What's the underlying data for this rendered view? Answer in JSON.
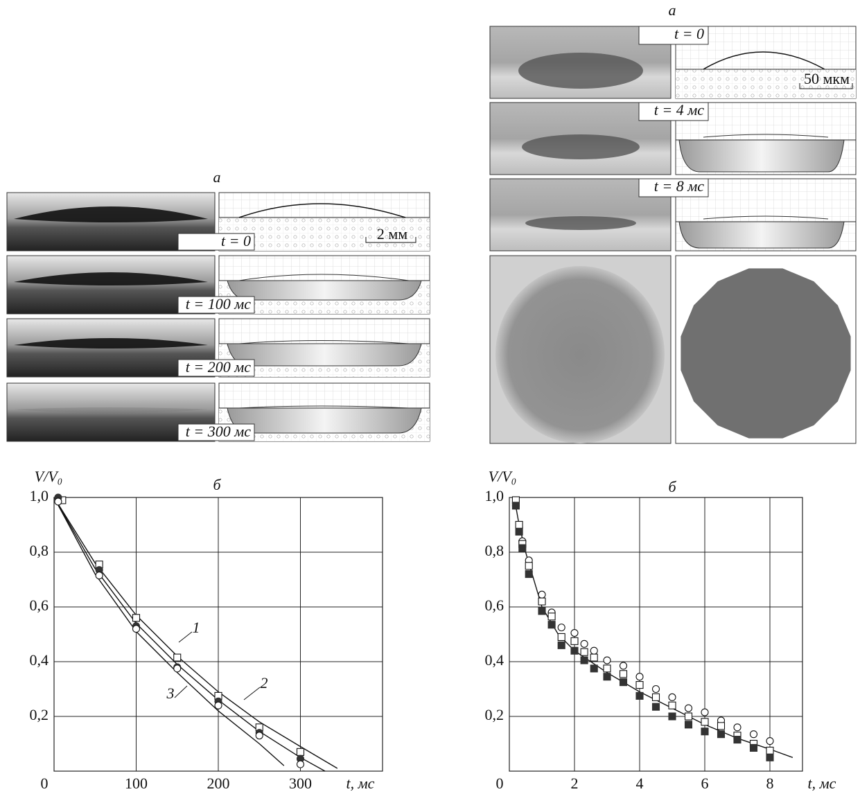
{
  "left_figure": {
    "label": "а",
    "frames": [
      "t = 0",
      "t = 100 мс",
      "t = 200 мс",
      "t = 300 мс"
    ],
    "scale": "2 мм"
  },
  "right_figure": {
    "label": "а",
    "frames": [
      "t = 0",
      "t = 4 мс",
      "t = 8 мс"
    ],
    "scale": "50 мкм"
  },
  "chart_data": [
    {
      "type": "scatter",
      "title": "б",
      "y_label": "V/V₀",
      "x_label": "t, мс",
      "xlim": [
        0,
        400
      ],
      "ylim": [
        0,
        1.0
      ],
      "xticks": [
        0,
        100,
        200,
        300
      ],
      "yticks": [
        {
          "value": 0.2,
          "label": "0,2"
        },
        {
          "value": 0.4,
          "label": "0,4"
        },
        {
          "value": 0.6,
          "label": "0,6"
        },
        {
          "value": 0.8,
          "label": "0,8"
        },
        {
          "value": 1.0,
          "label": "1,0"
        }
      ],
      "grid": true,
      "series": [
        {
          "name": "1",
          "style": "line",
          "color": "#111111",
          "x": [
            0,
            50,
            100,
            150,
            200,
            250,
            300,
            345
          ],
          "values": [
            1.0,
            0.76,
            0.57,
            0.42,
            0.29,
            0.18,
            0.09,
            0.01
          ]
        },
        {
          "name": "2",
          "style": "line",
          "color": "#111111",
          "x": [
            0,
            50,
            100,
            150,
            200,
            250,
            300,
            330
          ],
          "values": [
            1.0,
            0.74,
            0.54,
            0.39,
            0.26,
            0.145,
            0.05,
            0.0
          ]
        },
        {
          "name": "3",
          "style": "line",
          "color": "#111111",
          "x": [
            0,
            50,
            100,
            150,
            200,
            250,
            280
          ],
          "values": [
            1.0,
            0.72,
            0.51,
            0.36,
            0.22,
            0.1,
            0.02
          ]
        },
        {
          "marker": "square",
          "filled": false,
          "color": "#111111",
          "x": [
            10,
            55,
            100,
            150,
            200,
            250,
            300
          ],
          "values": [
            0.99,
            0.755,
            0.56,
            0.415,
            0.275,
            0.16,
            0.07
          ]
        },
        {
          "marker": "circle",
          "filled": true,
          "color": "#333333",
          "x": [
            5,
            55,
            100,
            150,
            200,
            250,
            300
          ],
          "values": [
            1.0,
            0.735,
            0.53,
            0.38,
            0.255,
            0.14,
            0.045
          ]
        },
        {
          "marker": "circle",
          "filled": false,
          "color": "#111111",
          "x": [
            5,
            55,
            100,
            150,
            200,
            250,
            300
          ],
          "values": [
            0.985,
            0.715,
            0.52,
            0.375,
            0.24,
            0.13,
            0.025
          ]
        }
      ]
    },
    {
      "type": "scatter",
      "title": "б",
      "y_label": "V/V₀",
      "x_label": "t, мс",
      "xlim": [
        0,
        9
      ],
      "ylim": [
        0,
        1.0
      ],
      "xticks": [
        0,
        2,
        4,
        6,
        8
      ],
      "yticks": [
        {
          "value": 0.2,
          "label": "0,2"
        },
        {
          "value": 0.4,
          "label": "0,4"
        },
        {
          "value": 0.6,
          "label": "0,6"
        },
        {
          "value": 0.8,
          "label": "0,8"
        },
        {
          "value": 1.0,
          "label": "1,0"
        }
      ],
      "grid": true,
      "series": [
        {
          "style": "line",
          "color": "#111111",
          "x": [
            0.15,
            0.3,
            0.5,
            0.8,
            1,
            1.5,
            2,
            3,
            4,
            5,
            6,
            7,
            8,
            8.7
          ],
          "values": [
            1.0,
            0.9,
            0.8,
            0.68,
            0.6,
            0.5,
            0.44,
            0.36,
            0.29,
            0.23,
            0.17,
            0.12,
            0.08,
            0.05
          ]
        },
        {
          "marker": "circle",
          "filled": false,
          "color": "#111111",
          "x": [
            0.2,
            0.3,
            0.4,
            0.6,
            1,
            1.3,
            1.6,
            2,
            2.3,
            2.6,
            3,
            3.5,
            4,
            4.5,
            5,
            5.5,
            6,
            6.5,
            7,
            7.5,
            8
          ],
          "values": [
            0.97,
            0.89,
            0.84,
            0.77,
            0.645,
            0.58,
            0.525,
            0.505,
            0.465,
            0.44,
            0.405,
            0.385,
            0.345,
            0.3,
            0.27,
            0.23,
            0.215,
            0.185,
            0.16,
            0.135,
            0.11
          ]
        },
        {
          "marker": "square",
          "filled": false,
          "color": "#111111",
          "x": [
            0.2,
            0.3,
            0.4,
            0.6,
            1,
            1.3,
            1.6,
            2,
            2.3,
            2.6,
            3,
            3.5,
            4,
            4.5,
            5,
            5.5,
            6,
            6.5,
            7,
            7.5,
            8
          ],
          "values": [
            0.99,
            0.9,
            0.83,
            0.75,
            0.62,
            0.565,
            0.49,
            0.475,
            0.435,
            0.415,
            0.375,
            0.355,
            0.315,
            0.27,
            0.24,
            0.2,
            0.18,
            0.165,
            0.13,
            0.1,
            0.075
          ]
        },
        {
          "marker": "square",
          "filled": true,
          "color": "#333333",
          "x": [
            0.2,
            0.3,
            0.4,
            0.6,
            1,
            1.3,
            1.6,
            2,
            2.3,
            2.6,
            3,
            3.5,
            4,
            4.5,
            5,
            5.5,
            6,
            6.5,
            7,
            7.5,
            8
          ],
          "values": [
            0.97,
            0.875,
            0.815,
            0.72,
            0.585,
            0.535,
            0.46,
            0.44,
            0.405,
            0.375,
            0.345,
            0.325,
            0.275,
            0.235,
            0.2,
            0.17,
            0.145,
            0.135,
            0.115,
            0.085,
            0.05
          ]
        }
      ]
    }
  ]
}
